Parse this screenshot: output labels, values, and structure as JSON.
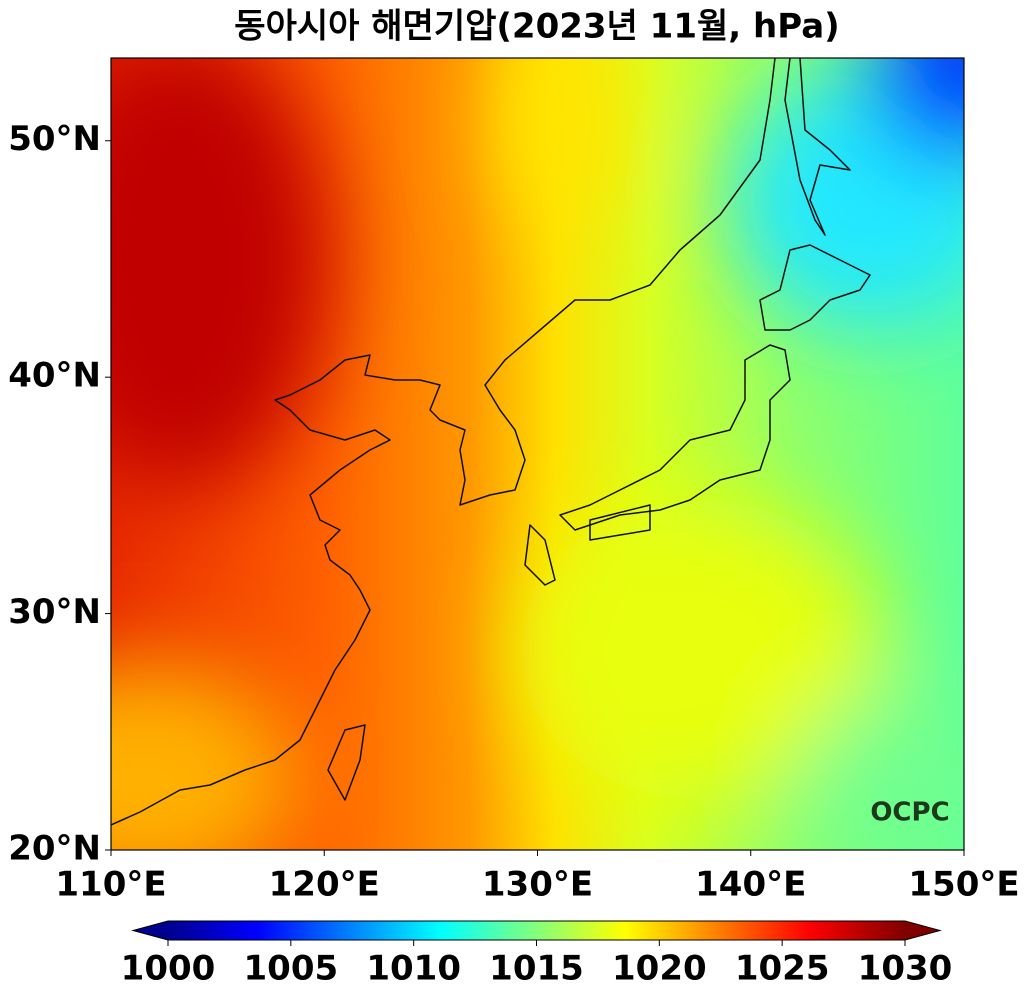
{
  "title": "동아시아 해면기압(2023년 11월, hPa)",
  "map": {
    "xlim": [
      110,
      150
    ],
    "ylim": [
      20,
      53.5
    ],
    "xticks": [
      {
        "value": 110,
        "label": "110°E"
      },
      {
        "value": 120,
        "label": "120°E"
      },
      {
        "value": 130,
        "label": "130°E"
      },
      {
        "value": 140,
        "label": "140°E"
      },
      {
        "value": 150,
        "label": "150°E"
      }
    ],
    "yticks": [
      {
        "value": 20,
        "label": "20°N"
      },
      {
        "value": 30,
        "label": "30°N"
      },
      {
        "value": 40,
        "label": "40°N"
      },
      {
        "value": 50,
        "label": "50°N"
      }
    ],
    "logo": "OCPC"
  },
  "colorbar": {
    "clim": [
      1000,
      1030
    ],
    "ticks": [
      1000,
      1005,
      1010,
      1015,
      1020,
      1025,
      1030
    ],
    "colormap": "jet",
    "extend": "both"
  }
}
